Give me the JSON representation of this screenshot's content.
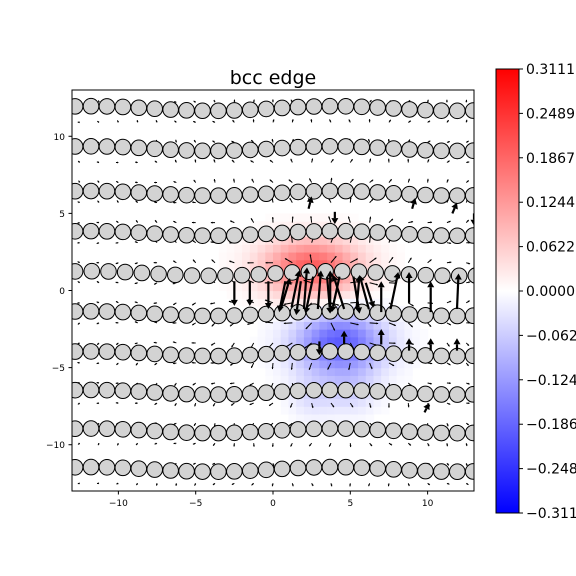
{
  "chart_data": {
    "type": "heatmap",
    "title": "bcc edge",
    "xlabel": "",
    "ylabel": "",
    "xlim": [
      -13,
      13
    ],
    "ylim": [
      -13,
      13
    ],
    "xticks": [
      -10,
      -5,
      0,
      5,
      10
    ],
    "yticks": [
      10,
      5,
      0,
      -5,
      -10
    ],
    "xtick_labels": [
      "−10",
      "−5",
      "0",
      "5",
      "10"
    ],
    "ytick_labels": [
      "10",
      "5",
      "0",
      "−5",
      "−10"
    ],
    "grid": false,
    "colormap": "bwr",
    "colorbar": {
      "vmin": -0.3111,
      "vmax": 0.3111,
      "ticks": [
        0.3111,
        0.2489,
        0.1867,
        0.1244,
        0.0622,
        0.0,
        -0.0622,
        -0.1244,
        -0.1867,
        -0.2489,
        -0.3111
      ],
      "labels": [
        "0.3111",
        "0.2489",
        "0.1867",
        "0.1244",
        "0.0622",
        "0.0000",
        "−0.0622",
        "−0.1244",
        "−0.1867",
        "−0.2489",
        "−0.3111"
      ]
    },
    "colors": {
      "max": "#ff0000",
      "mid": "#ffffff",
      "min": "#0000ff",
      "atom_fill": "#d3d3d3",
      "atom_edge": "#000000"
    },
    "field_sources": [
      {
        "x": 2.5,
        "y": 1.5,
        "amplitude": 0.2,
        "sx": 2.2,
        "sy": 1.3
      },
      {
        "x": 4.3,
        "y": -3.4,
        "amplitude": -0.2,
        "sx": 2.0,
        "sy": 1.4
      },
      {
        "x": 5.0,
        "y": -6.5,
        "amplitude": -0.05,
        "sx": 1.2,
        "sy": 1.0
      },
      {
        "x": 2.5,
        "y": -6.8,
        "amplitude": -0.04,
        "sx": 1.0,
        "sy": 1.0
      }
    ],
    "atom_rows": [
      {
        "y": 11.8,
        "x_start": -12.8,
        "spacing": 1.03
      },
      {
        "y": 9.2,
        "x_start": -12.8,
        "spacing": 1.03
      },
      {
        "y": 6.3,
        "x_start": -12.8,
        "spacing": 1.03
      },
      {
        "y": 3.7,
        "x_start": -12.8,
        "spacing": 1.03
      },
      {
        "y": 1.1,
        "x_start": -12.8,
        "spacing": 1.08
      },
      {
        "y": -1.5,
        "x_start": -12.8,
        "spacing": 1.03
      },
      {
        "y": -4.1,
        "x_start": -12.8,
        "spacing": 1.03
      },
      {
        "y": -6.6,
        "x_start": -12.8,
        "spacing": 1.03
      },
      {
        "y": -9.1,
        "x_start": -12.8,
        "spacing": 1.03
      },
      {
        "y": -11.6,
        "x_start": -12.8,
        "spacing": 1.03
      }
    ],
    "displacement_arrows": [
      {
        "x": -2.5,
        "y": 0.6,
        "dx": 0.0,
        "dy": -1.6
      },
      {
        "x": -1.5,
        "y": 0.6,
        "dx": 0.0,
        "dy": -1.6
      },
      {
        "x": -0.3,
        "y": 0.6,
        "dx": 0.0,
        "dy": -1.8
      },
      {
        "x": 0.8,
        "y": 0.6,
        "dx": -0.4,
        "dy": -2.0
      },
      {
        "x": 1.8,
        "y": 0.6,
        "dx": -0.3,
        "dy": -2.2
      },
      {
        "x": 2.6,
        "y": 0.9,
        "dx": -0.5,
        "dy": -2.4
      },
      {
        "x": 3.5,
        "y": 0.9,
        "dx": 0.2,
        "dy": -2.4
      },
      {
        "x": 4.3,
        "y": 0.9,
        "dx": -0.5,
        "dy": -2.3
      },
      {
        "x": 5.2,
        "y": 0.9,
        "dx": 0.4,
        "dy": -2.4
      },
      {
        "x": 6.0,
        "y": 0.5,
        "dx": 0.5,
        "dy": -1.6
      },
      {
        "x": 0.5,
        "y": -1.2,
        "dx": 0.6,
        "dy": 2.0
      },
      {
        "x": 1.2,
        "y": -1.1,
        "dx": 0.5,
        "dy": 2.4
      },
      {
        "x": 2.0,
        "y": -1.2,
        "dx": 0.2,
        "dy": 2.7
      },
      {
        "x": 2.9,
        "y": -1.2,
        "dx": 0.2,
        "dy": 2.5
      },
      {
        "x": 3.7,
        "y": -1.1,
        "dx": 0.0,
        "dy": 2.4
      },
      {
        "x": 4.6,
        "y": -1.2,
        "dx": -0.7,
        "dy": 2.2
      },
      {
        "x": 5.4,
        "y": -1.2,
        "dx": 0.2,
        "dy": 2.2
      },
      {
        "x": 6.2,
        "y": -1.2,
        "dx": -0.6,
        "dy": 2.2
      },
      {
        "x": 7.0,
        "y": -1.4,
        "dx": 0.0,
        "dy": 2.0
      },
      {
        "x": 7.6,
        "y": -1.2,
        "dx": 0.5,
        "dy": 2.4
      },
      {
        "x": 8.8,
        "y": -0.8,
        "dx": 0.0,
        "dy": 2.0
      },
      {
        "x": 10.2,
        "y": -1.4,
        "dx": 0.0,
        "dy": 2.0
      },
      {
        "x": 11.9,
        "y": -1.2,
        "dx": 0.1,
        "dy": 2.3
      },
      {
        "x": 3.0,
        "y": -3.3,
        "dx": 0.0,
        "dy": -0.9
      },
      {
        "x": 4.6,
        "y": -3.5,
        "dx": 0.0,
        "dy": 0.9
      },
      {
        "x": 7.0,
        "y": -3.5,
        "dx": 0.0,
        "dy": 1.0
      },
      {
        "x": 8.8,
        "y": -3.9,
        "dx": 0.0,
        "dy": 0.8
      },
      {
        "x": 10.2,
        "y": -3.9,
        "dx": 0.0,
        "dy": 0.8
      },
      {
        "x": 11.9,
        "y": -3.9,
        "dx": 0.0,
        "dy": 0.8
      },
      {
        "x": 2.3,
        "y": 5.3,
        "dx": 0.2,
        "dy": 0.8
      },
      {
        "x": 4.0,
        "y": 5.1,
        "dx": 0.0,
        "dy": -0.8
      },
      {
        "x": 9.0,
        "y": 5.3,
        "dx": 0.2,
        "dy": 0.7
      },
      {
        "x": 11.6,
        "y": 5.0,
        "dx": 0.3,
        "dy": 0.7
      },
      {
        "x": 13.0,
        "y": 5.0,
        "dx": 0.0,
        "dy": -0.8
      },
      {
        "x": 9.8,
        "y": -7.9,
        "dx": 0.3,
        "dy": 0.6
      }
    ],
    "background_arrow_field": {
      "x_range": [
        -12.5,
        12.5
      ],
      "y_range": [
        -12.5,
        12.5
      ],
      "step_x": 1.25,
      "step_y": 1.3,
      "description": "small arrows pointing away from dislocation core"
    }
  }
}
